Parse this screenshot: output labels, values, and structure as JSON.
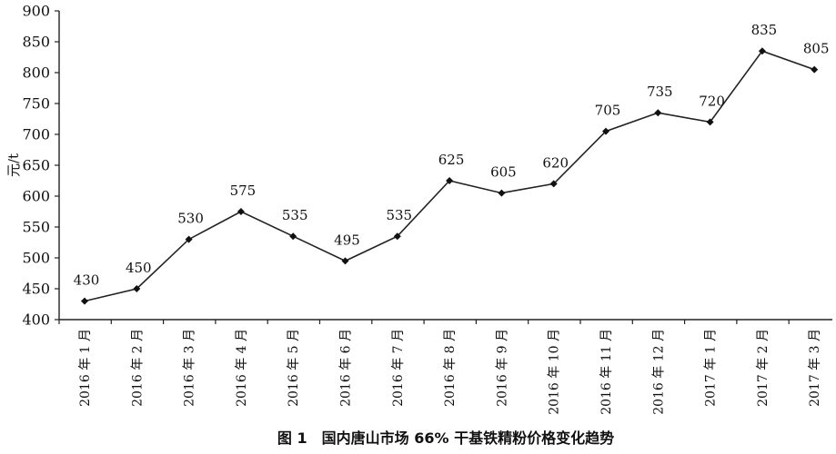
{
  "chart_data": {
    "type": "line",
    "title": "图 1　国内唐山市场 66% 干基铁精粉价格变化趋势",
    "ylabel": "元/t",
    "xlabel": "",
    "ylim": [
      400,
      900
    ],
    "yticks": [
      400,
      450,
      500,
      550,
      600,
      650,
      700,
      750,
      800,
      850,
      900
    ],
    "grid": false,
    "categories": [
      "2016 年 1 月",
      "2016 年 2 月",
      "2016 年 3 月",
      "2016 年 4 月",
      "2016 年 5 月",
      "2016 年 6 月",
      "2016 年 7 月",
      "2016 年 8 月",
      "2016 年 9 月",
      "2016 年 10 月",
      "2016 年 11 月",
      "2016 年 12 月",
      "2017 年 1 月",
      "2017 年 2 月",
      "2017 年 3 月"
    ],
    "series": [
      {
        "values": [
          430,
          450,
          530,
          575,
          535,
          495,
          535,
          625,
          605,
          620,
          705,
          735,
          720,
          835,
          805
        ]
      }
    ],
    "colors": {
      "line": "#222222",
      "marker": "#111111",
      "axis": "#222222",
      "text": "#111111"
    }
  }
}
